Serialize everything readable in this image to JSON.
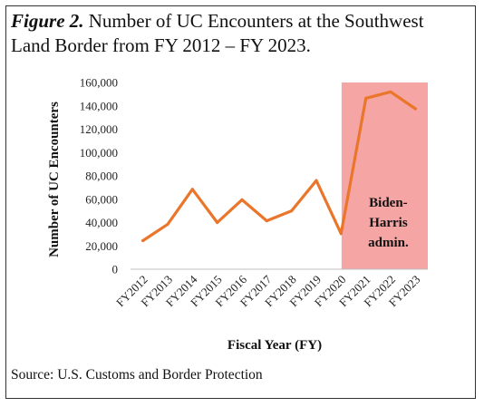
{
  "figure": {
    "label": "Figure 2.",
    "title": "Number of UC Encounters at the Southwest Land Border from FY 2012 – FY 2023.",
    "source": "Source: U.S. Customs and Border Protection"
  },
  "chart_data": {
    "type": "line",
    "title": "Number of UC Encounters at the Southwest Land Border from FY 2012 – FY 2023.",
    "xlabel": "Fiscal Year (FY)",
    "ylabel": "Number of UC Encounters",
    "categories": [
      "FY2012",
      "FY2013",
      "FY2014",
      "FY2015",
      "FY2016",
      "FY2017",
      "FY2018",
      "FY2019",
      "FY2020",
      "FY2021",
      "FY2022",
      "FY2023"
    ],
    "series": [
      {
        "values": [
          24500,
          38500,
          68500,
          40000,
          59500,
          41500,
          50000,
          76000,
          30500,
          146500,
          152000,
          137500
        ]
      }
    ],
    "ylim": [
      0,
      160000
    ],
    "yticks": [
      0,
      20000,
      40000,
      60000,
      80000,
      100000,
      120000,
      140000,
      160000
    ],
    "ytick_labels": [
      "0",
      "20,000",
      "40,000",
      "60,000",
      "80,000",
      "100,000",
      "120,000",
      "140,000",
      "160,000"
    ],
    "grid": false,
    "line_color": "#e9762b",
    "shaded_region": {
      "from": "FY2020",
      "to": "FY2023",
      "color": "#f6a5a5",
      "label_lines": [
        "Biden-",
        "Harris",
        "admin."
      ]
    }
  }
}
